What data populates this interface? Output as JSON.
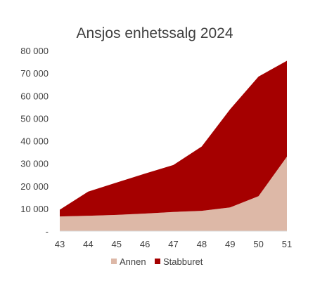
{
  "chart_data": {
    "type": "area",
    "stacked": true,
    "title": "Ansjos enhetssalg 2024",
    "xlabel": "",
    "ylabel": "",
    "x": [
      "43",
      "44",
      "45",
      "46",
      "47",
      "48",
      "49",
      "50",
      "51"
    ],
    "series": [
      {
        "name": "Annen",
        "color": "#ddb8a7",
        "values": [
          6500,
          6800,
          7200,
          7800,
          8500,
          9000,
          10500,
          15500,
          33000
        ]
      },
      {
        "name": "Stabburet",
        "color": "#a50000",
        "values": [
          3000,
          10700,
          14300,
          17700,
          20800,
          28500,
          43500,
          53000,
          42500
        ]
      }
    ],
    "ylim": [
      0,
      80000
    ],
    "yticks": [
      {
        "value": 0,
        "label": "-"
      },
      {
        "value": 10000,
        "label": "10 000"
      },
      {
        "value": 20000,
        "label": "20 000"
      },
      {
        "value": 30000,
        "label": "30 000"
      },
      {
        "value": 40000,
        "label": "40 000"
      },
      {
        "value": 50000,
        "label": "50 000"
      },
      {
        "value": 60000,
        "label": "60 000"
      },
      {
        "value": 70000,
        "label": "70 000"
      },
      {
        "value": 80000,
        "label": "80 000"
      }
    ],
    "grid": false,
    "legend_position": "bottom"
  }
}
